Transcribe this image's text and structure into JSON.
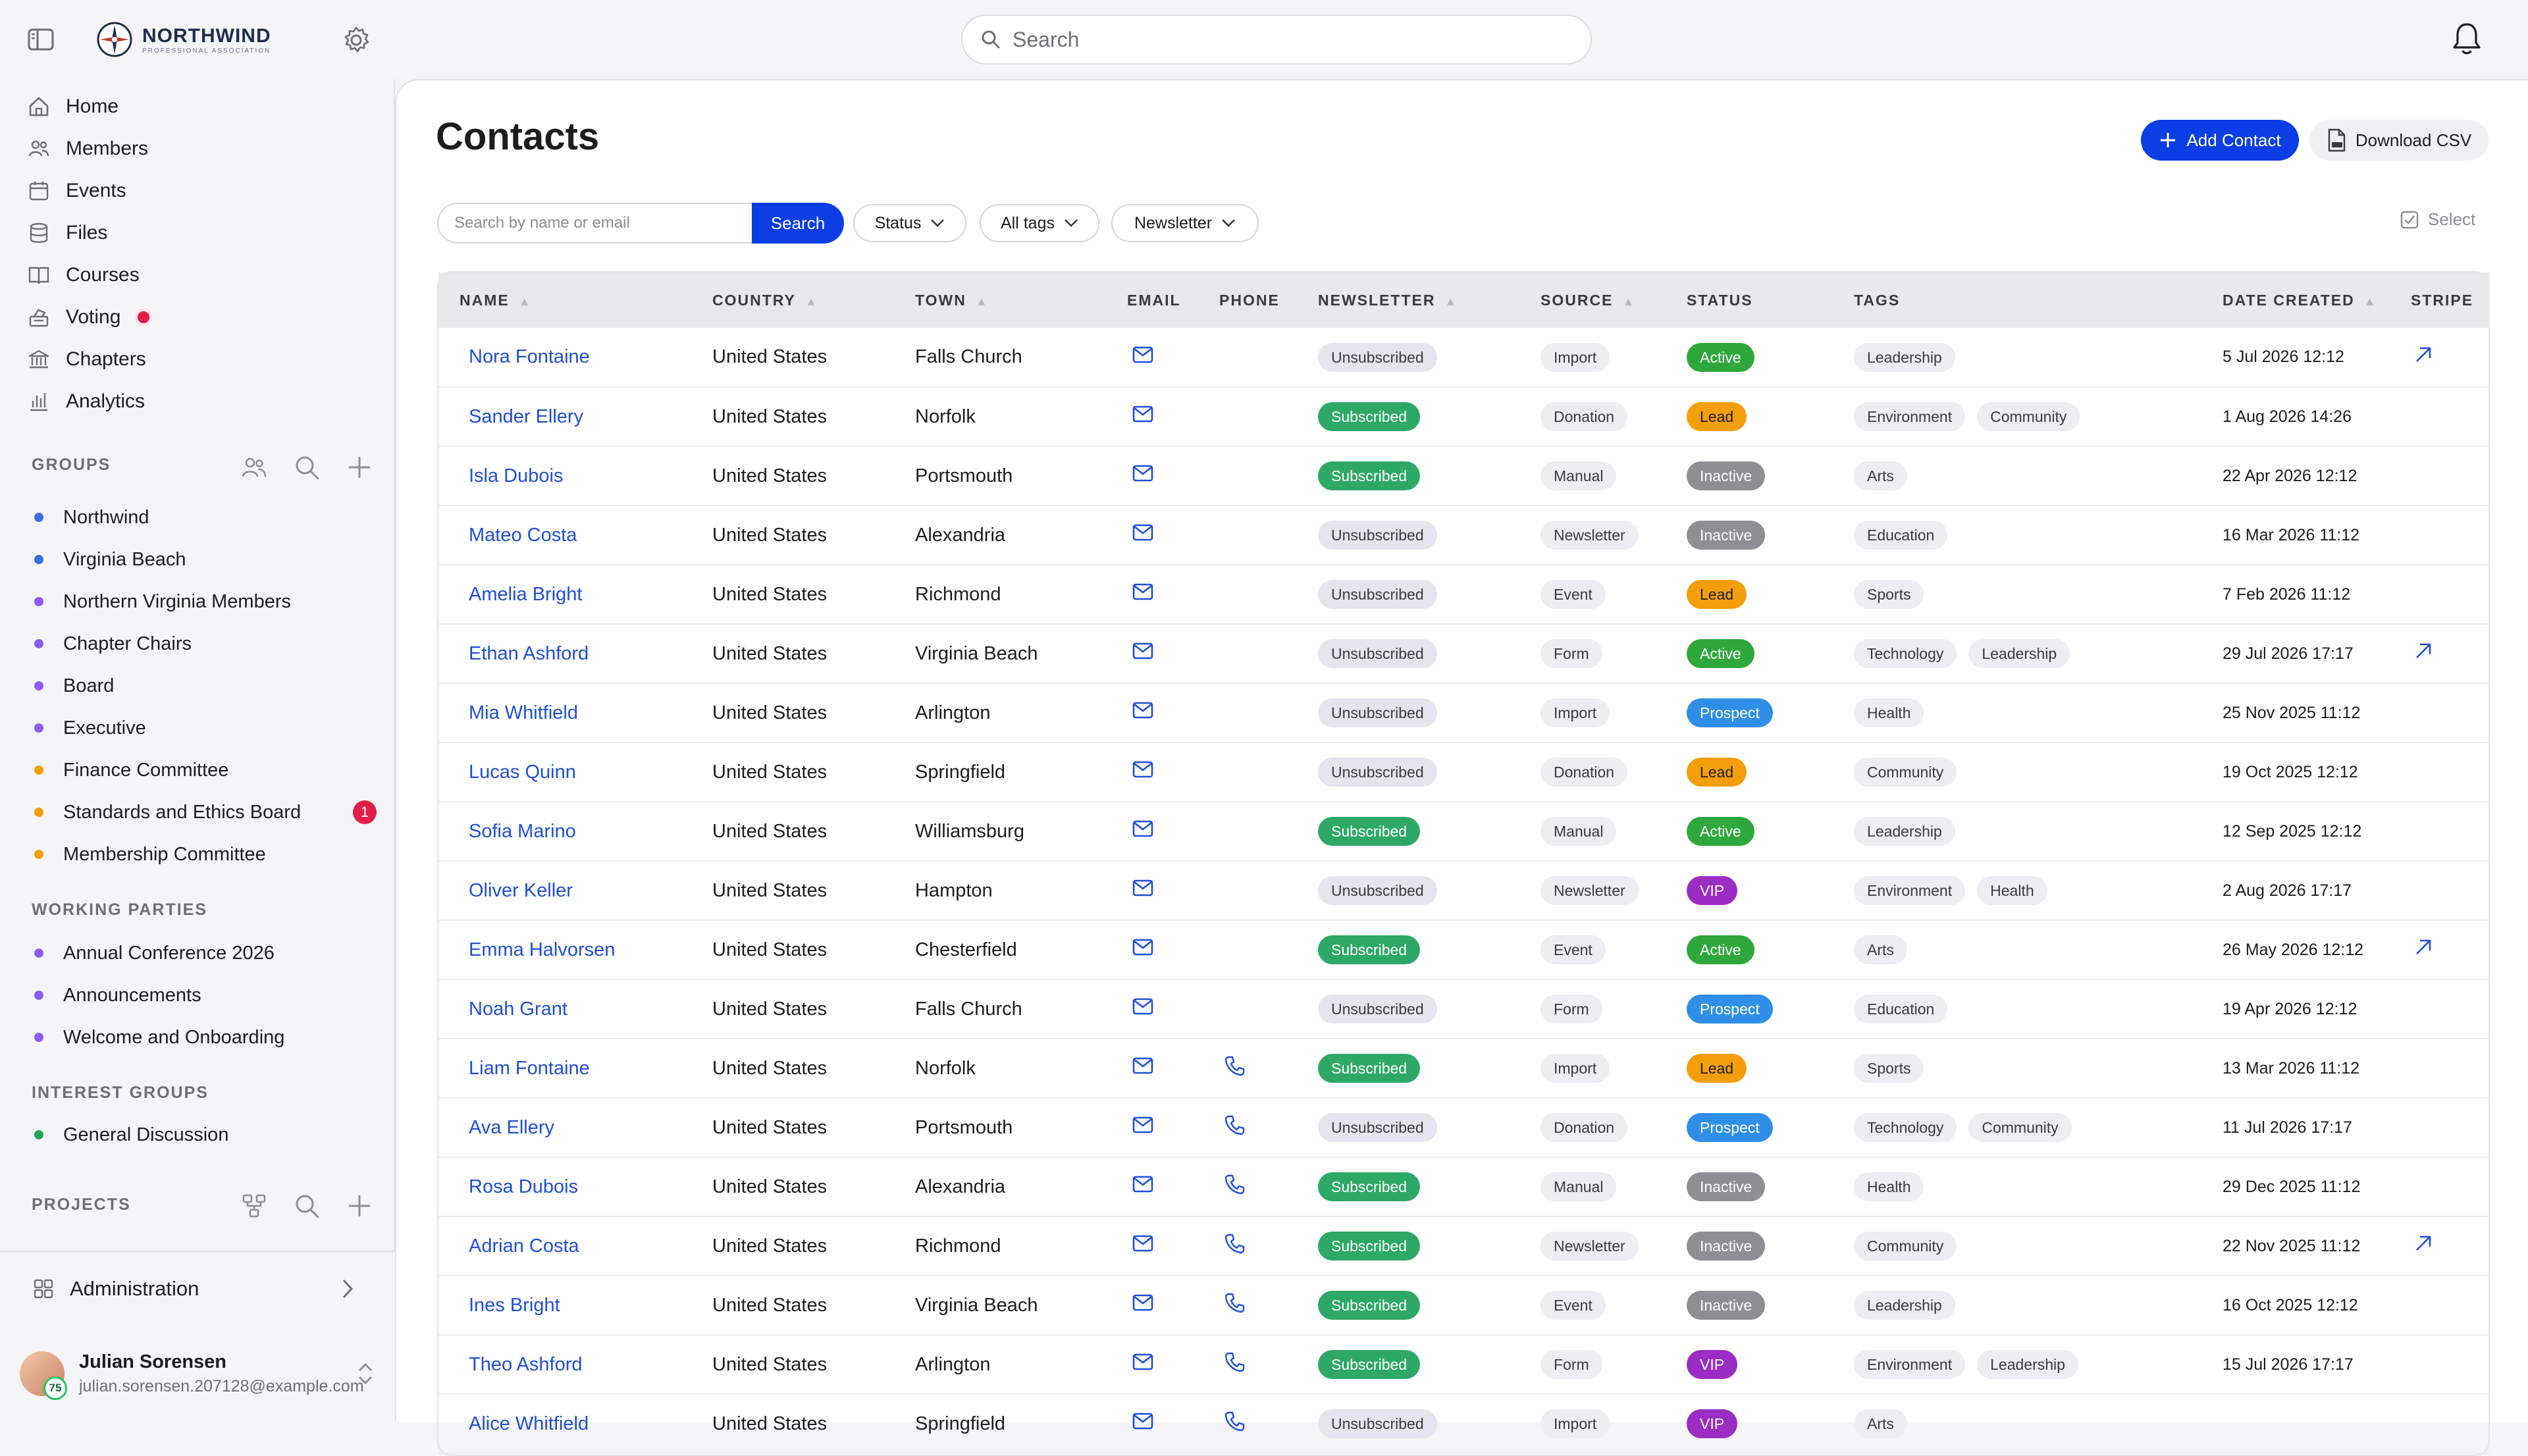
{
  "app": {
    "brand_name": "NORTHWIND",
    "brand_sub": "PROFESSIONAL ASSOCIATION",
    "search_placeholder": "Search"
  },
  "sidebar": {
    "nav": [
      {
        "label": "Home",
        "icon": "home-icon"
      },
      {
        "label": "Members",
        "icon": "members-icon"
      },
      {
        "label": "Events",
        "icon": "calendar-icon"
      },
      {
        "label": "Files",
        "icon": "files-icon"
      },
      {
        "label": "Courses",
        "icon": "book-icon"
      },
      {
        "label": "Voting",
        "icon": "voting-icon",
        "alert": true
      },
      {
        "label": "Chapters",
        "icon": "chapters-icon"
      },
      {
        "label": "Analytics",
        "icon": "analytics-icon"
      }
    ],
    "groups_heading": "GROUPS",
    "groups": [
      {
        "label": "Northwind",
        "color": "#3b6fe0"
      },
      {
        "label": "Virginia Beach",
        "color": "#3b6fe0"
      },
      {
        "label": "Northern Virginia Members",
        "color": "#8b5cf6"
      },
      {
        "label": "Chapter Chairs",
        "color": "#8b5cf6"
      },
      {
        "label": "Board",
        "color": "#8b5cf6"
      },
      {
        "label": "Executive",
        "color": "#8b5cf6"
      },
      {
        "label": "Finance Committee",
        "color": "#f59e0b"
      },
      {
        "label": "Standards and Ethics Board",
        "color": "#f59e0b",
        "badge": "1"
      },
      {
        "label": "Membership Committee",
        "color": "#f59e0b"
      }
    ],
    "working_heading": "WORKING PARTIES",
    "working": [
      {
        "label": "Annual Conference 2026",
        "color": "#8b5cf6"
      },
      {
        "label": "Announcements",
        "color": "#8b5cf6"
      },
      {
        "label": "Welcome and Onboarding",
        "color": "#8b5cf6"
      }
    ],
    "interest_heading": "INTEREST GROUPS",
    "interest": [
      {
        "label": "General Discussion",
        "color": "#22a559"
      }
    ],
    "projects_heading": "PROJECTS",
    "admin_label": "Administration",
    "user": {
      "name": "Julian Sorensen",
      "email": "julian.sorensen.207128@example.com",
      "badge": "75"
    }
  },
  "main": {
    "title": "Contacts",
    "add_label": "Add Contact",
    "csv_label": "Download CSV",
    "filter_placeholder": "Search by name or email",
    "filter_button": "Search",
    "filter_status": "Status",
    "filter_tags": "All tags",
    "filter_newsletter": "Newsletter",
    "select_label": "Select",
    "columns": [
      "NAME",
      "COUNTRY",
      "TOWN",
      "EMAIL",
      "PHONE",
      "NEWSLETTER",
      "SOURCE",
      "STATUS",
      "TAGS",
      "DATE CREATED",
      "STRIPE"
    ]
  },
  "contacts": [
    {
      "name": "Nora Fontaine",
      "country": "United States",
      "town": "Falls Church",
      "phone": false,
      "newsletter": "Unsubscribed",
      "source": "Import",
      "status": "Active",
      "tags": [
        "Leadership"
      ],
      "date": "5 Jul 2026 12:12",
      "stripe": true
    },
    {
      "name": "Sander Ellery",
      "country": "United States",
      "town": "Norfolk",
      "phone": false,
      "newsletter": "Subscribed",
      "source": "Donation",
      "status": "Lead",
      "tags": [
        "Environment",
        "Community"
      ],
      "date": "1 Aug 2026 14:26",
      "stripe": false
    },
    {
      "name": "Isla Dubois",
      "country": "United States",
      "town": "Portsmouth",
      "phone": false,
      "newsletter": "Subscribed",
      "source": "Manual",
      "status": "Inactive",
      "tags": [
        "Arts"
      ],
      "date": "22 Apr 2026 12:12",
      "stripe": false
    },
    {
      "name": "Mateo Costa",
      "country": "United States",
      "town": "Alexandria",
      "phone": false,
      "newsletter": "Unsubscribed",
      "source": "Newsletter",
      "status": "Inactive",
      "tags": [
        "Education"
      ],
      "date": "16 Mar 2026 11:12",
      "stripe": false
    },
    {
      "name": "Amelia Bright",
      "country": "United States",
      "town": "Richmond",
      "phone": false,
      "newsletter": "Unsubscribed",
      "source": "Event",
      "status": "Lead",
      "tags": [
        "Sports"
      ],
      "date": "7 Feb 2026 11:12",
      "stripe": false
    },
    {
      "name": "Ethan Ashford",
      "country": "United States",
      "town": "Virginia Beach",
      "phone": false,
      "newsletter": "Unsubscribed",
      "source": "Form",
      "status": "Active",
      "tags": [
        "Technology",
        "Leadership"
      ],
      "date": "29 Jul 2026 17:17",
      "stripe": true
    },
    {
      "name": "Mia Whitfield",
      "country": "United States",
      "town": "Arlington",
      "phone": false,
      "newsletter": "Unsubscribed",
      "source": "Import",
      "status": "Prospect",
      "tags": [
        "Health"
      ],
      "date": "25 Nov 2025 11:12",
      "stripe": false
    },
    {
      "name": "Lucas Quinn",
      "country": "United States",
      "town": "Springfield",
      "phone": false,
      "newsletter": "Unsubscribed",
      "source": "Donation",
      "status": "Lead",
      "tags": [
        "Community"
      ],
      "date": "19 Oct 2025 12:12",
      "stripe": false
    },
    {
      "name": "Sofia Marino",
      "country": "United States",
      "town": "Williamsburg",
      "phone": false,
      "newsletter": "Subscribed",
      "source": "Manual",
      "status": "Active",
      "tags": [
        "Leadership"
      ],
      "date": "12 Sep 2025 12:12",
      "stripe": false
    },
    {
      "name": "Oliver Keller",
      "country": "United States",
      "town": "Hampton",
      "phone": false,
      "newsletter": "Unsubscribed",
      "source": "Newsletter",
      "status": "VIP",
      "tags": [
        "Environment",
        "Health"
      ],
      "date": "2 Aug 2026 17:17",
      "stripe": false
    },
    {
      "name": "Emma Halvorsen",
      "country": "United States",
      "town": "Chesterfield",
      "phone": false,
      "newsletter": "Subscribed",
      "source": "Event",
      "status": "Active",
      "tags": [
        "Arts"
      ],
      "date": "26 May 2026 12:12",
      "stripe": true
    },
    {
      "name": "Noah Grant",
      "country": "United States",
      "town": "Falls Church",
      "phone": false,
      "newsletter": "Unsubscribed",
      "source": "Form",
      "status": "Prospect",
      "tags": [
        "Education"
      ],
      "date": "19 Apr 2026 12:12",
      "stripe": false
    },
    {
      "name": "Liam Fontaine",
      "country": "United States",
      "town": "Norfolk",
      "phone": true,
      "newsletter": "Subscribed",
      "source": "Import",
      "status": "Lead",
      "tags": [
        "Sports"
      ],
      "date": "13 Mar 2026 11:12",
      "stripe": false
    },
    {
      "name": "Ava Ellery",
      "country": "United States",
      "town": "Portsmouth",
      "phone": true,
      "newsletter": "Unsubscribed",
      "source": "Donation",
      "status": "Prospect",
      "tags": [
        "Technology",
        "Community"
      ],
      "date": "11 Jul 2026 17:17",
      "stripe": false
    },
    {
      "name": "Rosa Dubois",
      "country": "United States",
      "town": "Alexandria",
      "phone": true,
      "newsletter": "Subscribed",
      "source": "Manual",
      "status": "Inactive",
      "tags": [
        "Health"
      ],
      "date": "29 Dec 2025 11:12",
      "stripe": false
    },
    {
      "name": "Adrian Costa",
      "country": "United States",
      "town": "Richmond",
      "phone": true,
      "newsletter": "Subscribed",
      "source": "Newsletter",
      "status": "Inactive",
      "tags": [
        "Community"
      ],
      "date": "22 Nov 2025 11:12",
      "stripe": true
    },
    {
      "name": "Ines Bright",
      "country": "United States",
      "town": "Virginia Beach",
      "phone": true,
      "newsletter": "Subscribed",
      "source": "Event",
      "status": "Inactive",
      "tags": [
        "Leadership"
      ],
      "date": "16 Oct 2025 12:12",
      "stripe": false
    },
    {
      "name": "Theo Ashford",
      "country": "United States",
      "town": "Arlington",
      "phone": true,
      "newsletter": "Subscribed",
      "source": "Form",
      "status": "VIP",
      "tags": [
        "Environment",
        "Leadership"
      ],
      "date": "15 Jul 2026 17:17",
      "stripe": false
    },
    {
      "name": "Alice Whitfield",
      "country": "United States",
      "town": "Springfield",
      "phone": true,
      "newsletter": "Unsubscribed",
      "source": "Import",
      "status": "VIP",
      "tags": [
        "Arts"
      ],
      "date": "",
      "stripe": false
    }
  ]
}
